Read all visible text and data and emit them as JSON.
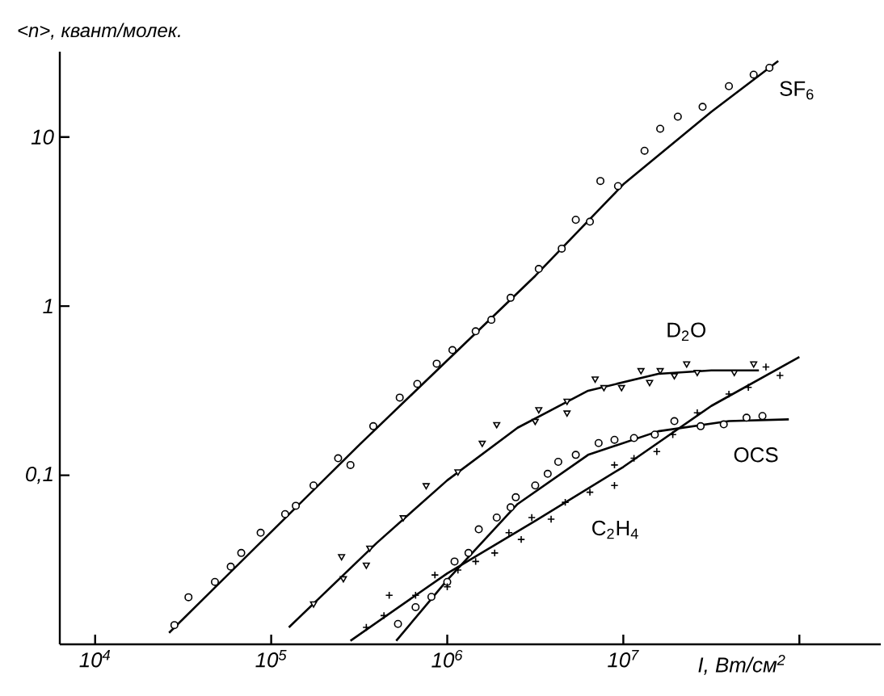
{
  "chart_data": {
    "type": "scatter",
    "xlabel": "I, Вт/см$^{2}$",
    "ylabel": "<n>, квант/молек.",
    "log": "xy",
    "xlim": [
      6300,
      290000000
    ],
    "ylim": [
      0.01,
      32
    ],
    "xticks": [
      {
        "value": 10000,
        "label": "10$^{4}$"
      },
      {
        "value": 100000,
        "label": "10$^{5}$"
      },
      {
        "value": 1000000,
        "label": "10$^{6}$"
      },
      {
        "value": 10000000,
        "label": "10$^{7}$"
      },
      {
        "value": 100000000,
        "label": null
      }
    ],
    "yticks": [
      {
        "value": 0.1,
        "label": "0,1"
      },
      1,
      10
    ],
    "series": [
      {
        "name": "SF$_{6}$",
        "marker": "circle",
        "color": "#000000",
        "x": [
          28200,
          33900,
          47900,
          58900,
          67600,
          87100,
          120000,
          138000,
          174000,
          240000,
          282000,
          380000,
          537000,
          676000,
          871000,
          1070000,
          1450000,
          1780000,
          2290000,
          3310000,
          4470000,
          5370000,
          6460000,
          7410000,
          9330000,
          13200000,
          16200000,
          20400000,
          28200000,
          39800000,
          55000000,
          67600000
        ],
        "values": [
          0.013,
          0.019,
          0.0234,
          0.0288,
          0.0347,
          0.0457,
          0.0589,
          0.066,
          0.087,
          0.126,
          0.115,
          0.195,
          0.288,
          0.347,
          0.457,
          0.55,
          0.71,
          0.83,
          1.12,
          1.66,
          2.19,
          3.24,
          3.16,
          5.5,
          5.13,
          8.3,
          11.2,
          13.2,
          15.1,
          20,
          23.4,
          25.7
        ]
      },
      {
        "type": "line",
        "marker": "none",
        "line_style": "solid",
        "color": "#000000",
        "x": [
          26300,
          316000,
          3160000,
          10000000,
          31600000,
          75900000
        ],
        "values": [
          0.0117,
          0.151,
          1.51,
          5.25,
          14.1,
          28.2
        ]
      },
      {
        "name": "D$_{2}$O",
        "marker": "triangle",
        "color": "#000000",
        "x": [
          174000,
          251000,
          257000,
          347000,
          363000,
          562000,
          759000,
          1150000,
          1580000,
          1910000,
          3160000,
          3310000,
          4790000,
          4790000,
          6920000,
          7760000,
          9770000,
          12600000,
          14100000,
          16200000,
          19500000,
          22900000,
          26300000,
          42700000,
          55000000
        ],
        "values": [
          0.0174,
          0.0331,
          0.0245,
          0.0295,
          0.0372,
          0.0562,
          0.087,
          0.105,
          0.155,
          0.2,
          0.209,
          0.245,
          0.275,
          0.234,
          0.372,
          0.331,
          0.331,
          0.417,
          0.355,
          0.417,
          0.389,
          0.457,
          0.407,
          0.407,
          0.457
        ]
      },
      {
        "type": "line",
        "marker": "none",
        "line_style": "solid",
        "color": "#000000",
        "x": [
          126000,
          398000,
          1000000,
          2510000,
          6310000,
          15800000,
          31600000,
          58900000
        ],
        "values": [
          0.0126,
          0.0398,
          0.0933,
          0.191,
          0.316,
          0.398,
          0.417,
          0.417
        ]
      },
      {
        "name": "OCS",
        "marker": "circle",
        "color": "#000000",
        "x": [
          525000,
          661000,
          813000,
          1000000,
          1100000,
          1320000,
          1510000,
          1910000,
          2290000,
          2450000,
          3160000,
          3720000,
          4270000,
          5370000,
          7240000,
          8910000,
          11500000,
          15100000,
          19500000,
          27500000,
          37200000,
          50100000,
          61700000
        ],
        "values": [
          0.0132,
          0.0166,
          0.0191,
          0.0234,
          0.0309,
          0.0347,
          0.0479,
          0.0562,
          0.0646,
          0.0741,
          0.087,
          0.102,
          0.12,
          0.132,
          0.155,
          0.162,
          0.166,
          0.174,
          0.209,
          0.195,
          0.2,
          0.219,
          0.224
        ]
      },
      {
        "type": "line",
        "marker": "none",
        "line_style": "solid",
        "color": "#000000",
        "x": [
          513000,
          1000000,
          2510000,
          6310000,
          15800000,
          39800000,
          87100000
        ],
        "values": [
          0.0105,
          0.024,
          0.0676,
          0.132,
          0.182,
          0.209,
          0.214
        ]
      },
      {
        "name": "C$_{2}$H$_{4}$",
        "marker": "cross",
        "color": "#000000",
        "x": [
          347000,
          437000,
          468000,
          661000,
          851000,
          1000000,
          1150000,
          1450000,
          1860000,
          2240000,
          2630000,
          3020000,
          3890000,
          4680000,
          6460000,
          8910000,
          8910000,
          11500000,
          15500000,
          19100000,
          26300000,
          39800000,
          51300000,
          64600000,
          77600000
        ],
        "values": [
          0.0126,
          0.0148,
          0.0195,
          0.0195,
          0.0257,
          0.0219,
          0.0275,
          0.0309,
          0.0347,
          0.0457,
          0.0417,
          0.0562,
          0.055,
          0.0692,
          0.0794,
          0.087,
          0.115,
          0.126,
          0.138,
          0.174,
          0.234,
          0.302,
          0.331,
          0.437,
          0.389
        ]
      },
      {
        "type": "line",
        "marker": "none",
        "line_style": "solid",
        "color": "#000000",
        "x": [
          282000,
          1000000,
          3160000,
          10000000,
          31600000,
          100000000
        ],
        "values": [
          0.0105,
          0.0263,
          0.0537,
          0.112,
          0.257,
          0.501
        ]
      }
    ]
  }
}
